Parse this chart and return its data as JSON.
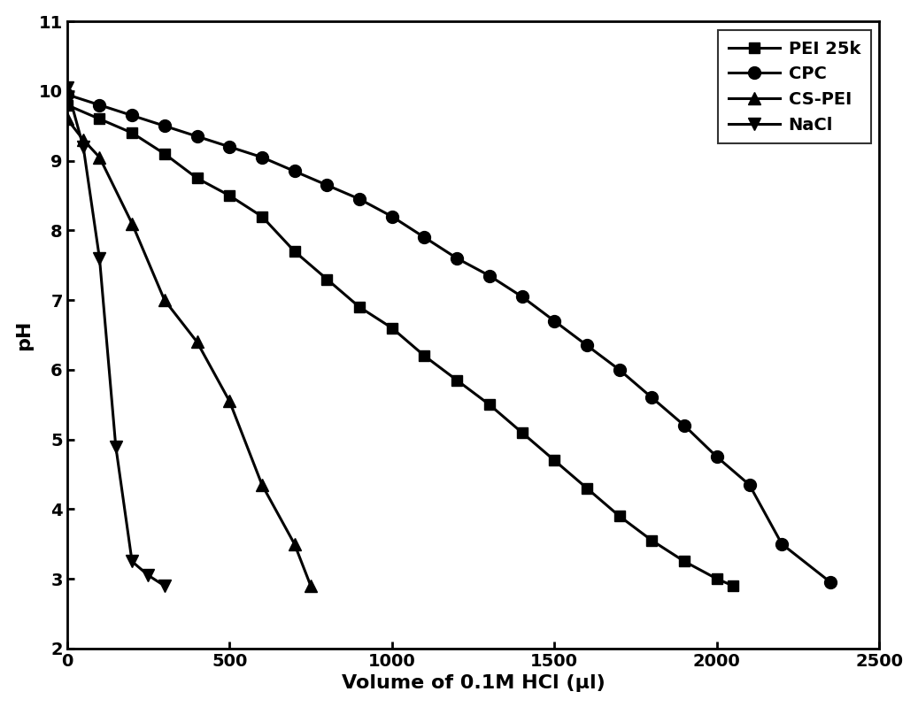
{
  "title": "",
  "xlabel": "Volume of 0.1M HCl (μl)",
  "ylabel": "pH",
  "xlim": [
    0,
    2500
  ],
  "ylim": [
    2,
    11
  ],
  "yticks": [
    2,
    3,
    4,
    5,
    6,
    7,
    8,
    9,
    10,
    11
  ],
  "xticks": [
    0,
    500,
    1000,
    1500,
    2000,
    2500
  ],
  "background_color": "#ffffff",
  "series": [
    {
      "label": "PEI 25k",
      "marker": "s",
      "color": "#000000",
      "linewidth": 2.2,
      "markersize": 9,
      "x": [
        0,
        100,
        200,
        300,
        400,
        500,
        600,
        700,
        800,
        900,
        1000,
        1100,
        1200,
        1300,
        1400,
        1500,
        1600,
        1700,
        1800,
        1900,
        2000,
        2050
      ],
      "y": [
        9.8,
        9.6,
        9.4,
        9.1,
        8.75,
        8.5,
        8.2,
        7.7,
        7.3,
        6.9,
        6.6,
        6.2,
        5.85,
        5.5,
        5.1,
        4.7,
        4.3,
        3.9,
        3.55,
        3.25,
        3.0,
        2.9
      ]
    },
    {
      "label": "CPC",
      "marker": "o",
      "color": "#000000",
      "linewidth": 2.2,
      "markersize": 10,
      "x": [
        0,
        100,
        200,
        300,
        400,
        500,
        600,
        700,
        800,
        900,
        1000,
        1100,
        1200,
        1300,
        1400,
        1500,
        1600,
        1700,
        1800,
        1900,
        2000,
        2100,
        2200,
        2350
      ],
      "y": [
        9.95,
        9.8,
        9.65,
        9.5,
        9.35,
        9.2,
        9.05,
        8.85,
        8.65,
        8.45,
        8.2,
        7.9,
        7.6,
        7.35,
        7.05,
        6.7,
        6.35,
        6.0,
        5.6,
        5.2,
        4.75,
        4.35,
        3.5,
        2.95
      ]
    },
    {
      "label": "CS-PEI",
      "marker": "^",
      "color": "#000000",
      "linewidth": 2.2,
      "markersize": 10,
      "x": [
        0,
        50,
        100,
        200,
        300,
        400,
        500,
        600,
        700,
        750
      ],
      "y": [
        9.6,
        9.3,
        9.05,
        8.1,
        7.0,
        6.4,
        5.55,
        4.35,
        3.5,
        2.9
      ]
    },
    {
      "label": "NaCl",
      "marker": "v",
      "color": "#000000",
      "linewidth": 2.2,
      "markersize": 10,
      "x": [
        0,
        50,
        100,
        150,
        200,
        250,
        300
      ],
      "y": [
        10.05,
        9.2,
        7.6,
        4.9,
        3.25,
        3.05,
        2.9
      ]
    }
  ],
  "legend_loc": "upper right",
  "legend_fontsize": 14,
  "legend_handlelength": 3.0,
  "tick_fontsize": 14,
  "axis_label_fontsize": 16
}
